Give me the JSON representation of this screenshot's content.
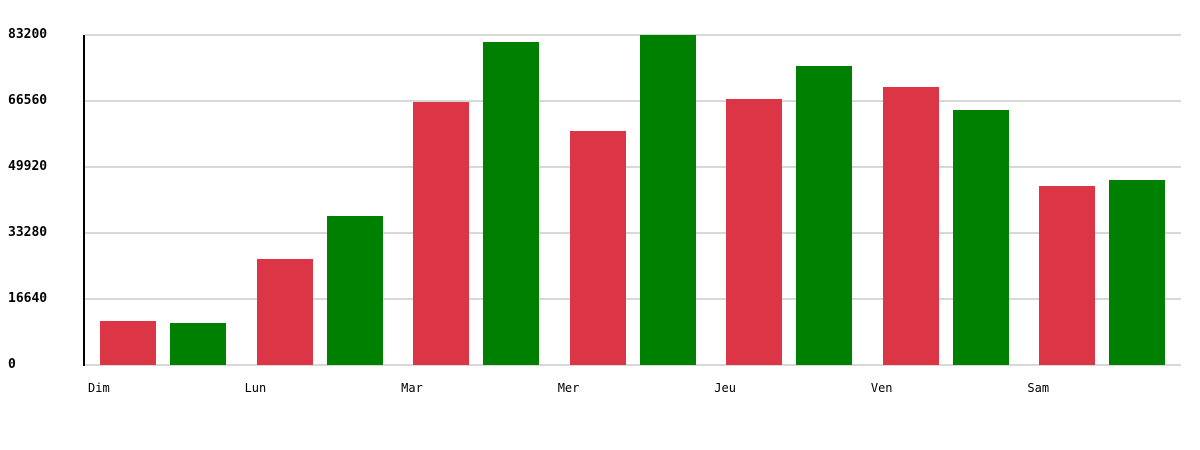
{
  "chart_data": {
    "type": "bar",
    "title": "",
    "xlabel": "",
    "ylabel": "",
    "categories": [
      "Dim",
      "Lun",
      "Mar",
      "Mer",
      "Jeu",
      "Ven",
      "Sam"
    ],
    "series": [
      {
        "name": "red",
        "color": "#DC3545",
        "values": [
          11100,
          26700,
          66300,
          59000,
          67100,
          70100,
          45100
        ]
      },
      {
        "name": "green",
        "color": "#008000",
        "values": [
          10600,
          37600,
          81400,
          83200,
          75400,
          64300,
          46600
        ]
      }
    ],
    "ylim": [
      0,
      83200
    ],
    "yticks": [
      0,
      16640,
      33280,
      49920,
      66560,
      83200
    ],
    "grid": true,
    "legend": "none"
  },
  "colors": {
    "background": "#ffffff",
    "grid": "#d8d8d8",
    "axis": "#000000",
    "text": "#000000"
  }
}
